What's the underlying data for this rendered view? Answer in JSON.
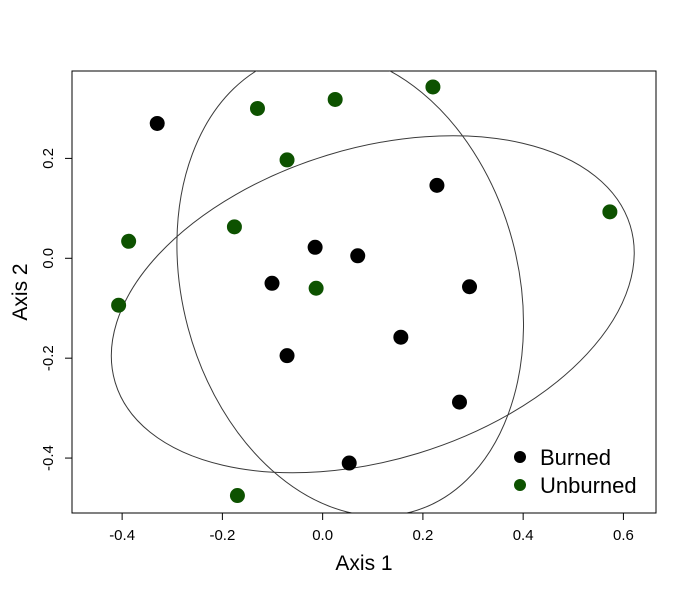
{
  "chart_data": {
    "type": "scatter",
    "title": "",
    "xlabel": "Axis 1",
    "ylabel": "Axis 2",
    "xlim": [
      -0.5,
      0.665
    ],
    "ylim": [
      -0.51,
      0.375
    ],
    "xticks": [
      -0.4,
      -0.2,
      0.0,
      0.2,
      0.4,
      0.6
    ],
    "xtick_labels": [
      "-0.4",
      "-0.2",
      "0.0",
      "0.2",
      "0.4",
      "0.6"
    ],
    "yticks": [
      -0.4,
      -0.2,
      0.0,
      0.2
    ],
    "ytick_labels": [
      "-0.4",
      "-0.2",
      "0.0",
      "0.2"
    ],
    "grid": false,
    "legend_position": "bottom-right",
    "series": [
      {
        "name": "Burned",
        "color": "#000000",
        "points": [
          {
            "x": -0.33,
            "y": 0.27
          },
          {
            "x": 0.228,
            "y": 0.146
          },
          {
            "x": -0.015,
            "y": 0.022
          },
          {
            "x": 0.07,
            "y": 0.005
          },
          {
            "x": -0.101,
            "y": -0.05
          },
          {
            "x": 0.293,
            "y": -0.057
          },
          {
            "x": 0.156,
            "y": -0.158
          },
          {
            "x": -0.071,
            "y": -0.195
          },
          {
            "x": 0.273,
            "y": -0.288
          },
          {
            "x": 0.053,
            "y": -0.41
          }
        ]
      },
      {
        "name": "Unburned",
        "color": "#0d5200",
        "points": [
          {
            "x": 0.22,
            "y": 0.343
          },
          {
            "x": 0.025,
            "y": 0.318
          },
          {
            "x": -0.13,
            "y": 0.3
          },
          {
            "x": -0.071,
            "y": 0.197
          },
          {
            "x": 0.573,
            "y": 0.093
          },
          {
            "x": -0.176,
            "y": 0.063
          },
          {
            "x": -0.387,
            "y": 0.034
          },
          {
            "x": -0.407,
            "y": -0.094
          },
          {
            "x": -0.013,
            "y": -0.06
          },
          {
            "x": -0.17,
            "y": -0.475
          }
        ]
      }
    ],
    "ellipses": [
      {
        "series": "Burned",
        "center": [
          0.055,
          -0.052
        ],
        "semi_axes": [
          0.335,
          0.472
        ],
        "rotation_deg": 15
      },
      {
        "series": "Unburned",
        "center": [
          0.1,
          -0.092
        ],
        "semi_axes": [
          0.537,
          0.312
        ],
        "rotation_deg": 17
      }
    ]
  }
}
